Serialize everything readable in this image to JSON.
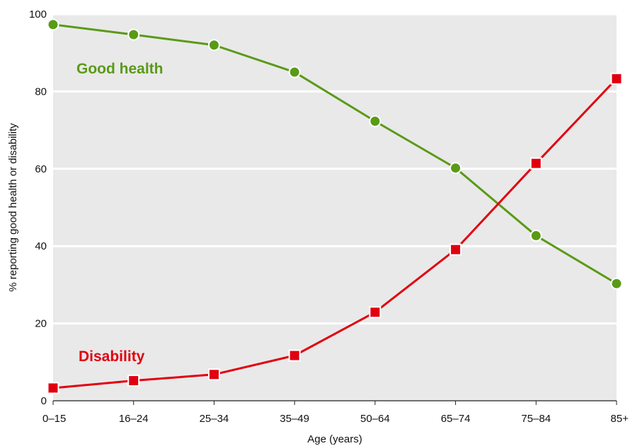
{
  "chart_data": {
    "type": "line",
    "categories": [
      "0–15",
      "16–24",
      "25–34",
      "35–49",
      "50–64",
      "65–74",
      "75–84",
      "85+"
    ],
    "series": [
      {
        "name": "Good health",
        "color": "#5a9a17",
        "marker": "circle",
        "values": [
          97.3,
          94.7,
          92.0,
          85.0,
          72.3,
          60.2,
          42.7,
          30.3
        ]
      },
      {
        "name": "Disability",
        "color": "#e1000f",
        "marker": "square",
        "values": [
          3.3,
          5.2,
          6.8,
          11.7,
          22.9,
          39.1,
          61.4,
          83.3
        ]
      }
    ],
    "xlabel": "Age (years)",
    "ylabel": "% reporting good health or disability",
    "ylim": [
      0,
      100
    ],
    "yticks": [
      0,
      20,
      40,
      60,
      80,
      100
    ],
    "grid": true,
    "background_color": "#e9e9e9"
  }
}
